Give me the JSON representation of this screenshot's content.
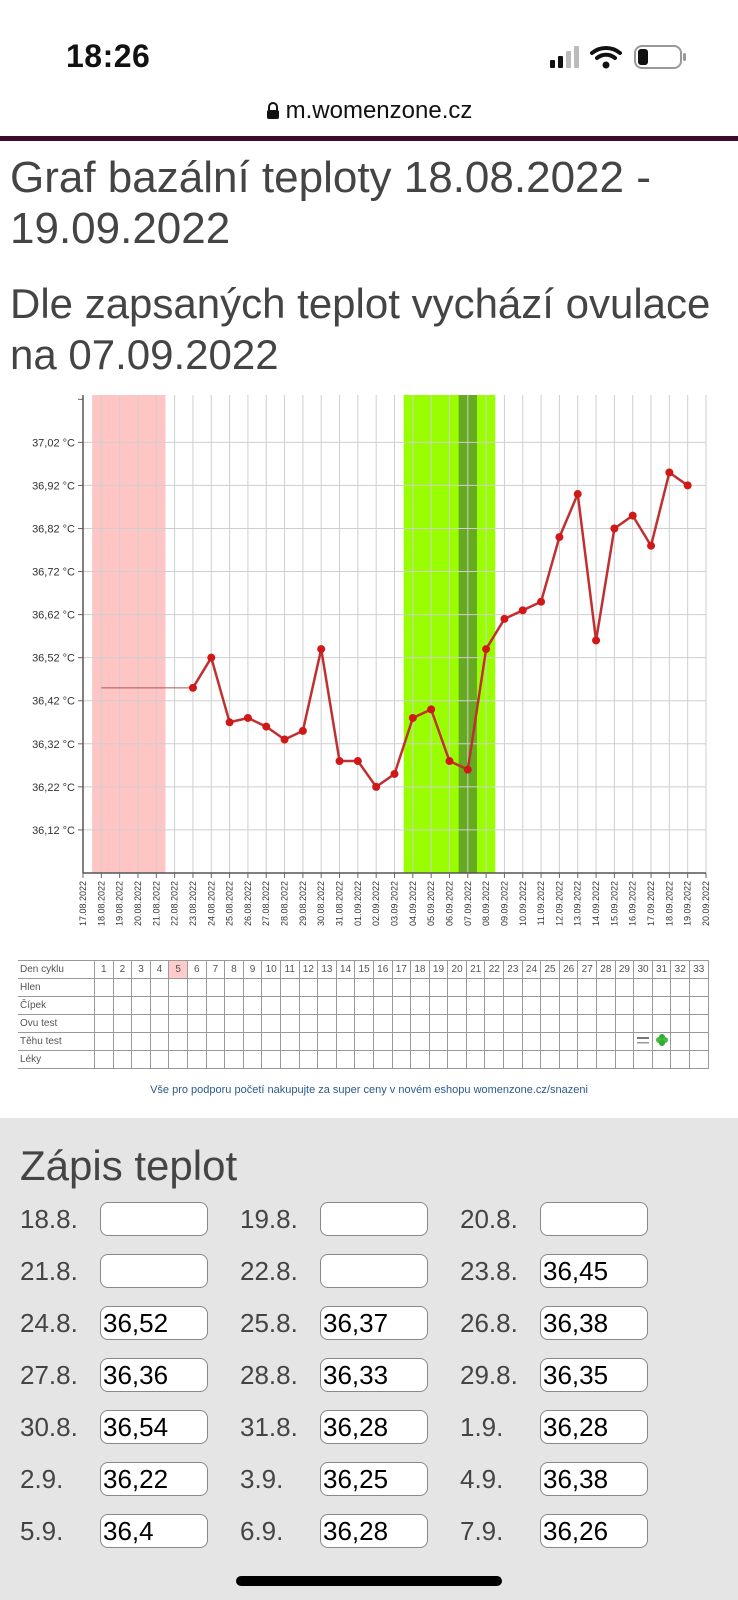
{
  "status_bar": {
    "time": "18:26"
  },
  "browser": {
    "url": "m.womenzone.cz"
  },
  "page": {
    "title": "Graf bazální teploty 18.08.2022 - 19.09.2022",
    "ovulation_text": "Dle zapsaných teplot vychází ovulace na 07.09.2022"
  },
  "chart_data": {
    "type": "line",
    "x": [
      "17.08.2022",
      "18.08.2022",
      "19.08.2022",
      "20.08.2022",
      "21.08.2022",
      "22.08.2022",
      "23.08.2022",
      "24.08.2022",
      "25.08.2022",
      "26.08.2022",
      "27.08.2022",
      "28.08.2022",
      "29.08.2022",
      "30.08.2022",
      "31.08.2022",
      "01.09.2022",
      "02.09.2022",
      "03.09.2022",
      "04.09.2022",
      "05.09.2022",
      "06.09.2022",
      "07.09.2022",
      "08.09.2022",
      "09.09.2022",
      "10.09.2022",
      "11.09.2022",
      "12.09.2022",
      "13.09.2022",
      "14.09.2022",
      "15.09.2022",
      "16.09.2022",
      "17.09.2022",
      "18.09.2022",
      "19.09.2022",
      "20.09.2022"
    ],
    "yticks": [
      "37,02 °C",
      "36,92 °C",
      "36,82 °C",
      "36,72 °C",
      "36,62 °C",
      "36,52 °C",
      "36,42 °C",
      "36,32 °C",
      "36,22 °C",
      "36,12 °C"
    ],
    "ylim": [
      36.02,
      37.13
    ],
    "series": [
      {
        "x": [
          "23.08.2022",
          "24.08.2022",
          "25.08.2022",
          "26.08.2022",
          "27.08.2022",
          "28.08.2022",
          "29.08.2022",
          "30.08.2022",
          "31.08.2022",
          "01.09.2022",
          "02.09.2022",
          "03.09.2022",
          "04.09.2022",
          "05.09.2022",
          "06.09.2022",
          "07.09.2022",
          "08.09.2022",
          "09.09.2022",
          "10.09.2022",
          "11.09.2022",
          "12.09.2022",
          "13.09.2022",
          "14.09.2022",
          "15.09.2022",
          "16.09.2022",
          "17.09.2022",
          "18.09.2022",
          "19.09.2022"
        ],
        "values": [
          36.45,
          36.52,
          36.37,
          36.38,
          36.36,
          36.33,
          36.35,
          36.54,
          36.28,
          36.28,
          36.22,
          36.25,
          36.38,
          36.4,
          36.28,
          36.26,
          36.54,
          36.61,
          36.63,
          36.65,
          36.8,
          36.9,
          36.56,
          36.82,
          36.85,
          36.78,
          36.95,
          36.92
        ],
        "color": "#c03030"
      }
    ],
    "baseline": {
      "from": "18.08.2022",
      "to": "23.08.2022",
      "value": 36.45
    },
    "bands": [
      {
        "from": "18.08.2022",
        "to": "22.08.2022",
        "color": "#ffc4c4"
      },
      {
        "from": "04.09.2022",
        "to": "09.09.2022",
        "color": "#99ff00"
      },
      {
        "from": "07.09.2022",
        "to": "08.09.2022",
        "color": "#66aa22"
      }
    ],
    "grid": true
  },
  "cycle_table": {
    "rows": [
      "Den cyklu",
      "Hlen",
      "Čípek",
      "Ovu test",
      "Těhu test",
      "Léky"
    ],
    "days": [
      "1",
      "2",
      "3",
      "4",
      "5",
      "6",
      "7",
      "8",
      "9",
      "10",
      "11",
      "12",
      "13",
      "14",
      "15",
      "16",
      "17",
      "18",
      "19",
      "20",
      "21",
      "22",
      "23",
      "24",
      "25",
      "26",
      "27",
      "28",
      "29",
      "30",
      "31",
      "32",
      "33"
    ],
    "highlight_day": "5",
    "test_marks": [
      {
        "day": "30",
        "icon": "test-strip-icon"
      },
      {
        "day": "31",
        "icon": "clover-icon"
      }
    ]
  },
  "promo": "Vše pro podporu početí nakupujte za super ceny v novém eshopu womenzone.cz/snazeni",
  "entry": {
    "title": "Zápis teplot",
    "items": [
      {
        "date": "18.8.",
        "value": ""
      },
      {
        "date": "19.8.",
        "value": ""
      },
      {
        "date": "20.8.",
        "value": ""
      },
      {
        "date": "21.8.",
        "value": ""
      },
      {
        "date": "22.8.",
        "value": ""
      },
      {
        "date": "23.8.",
        "value": "36,45"
      },
      {
        "date": "24.8.",
        "value": "36,52"
      },
      {
        "date": "25.8.",
        "value": "36,37"
      },
      {
        "date": "26.8.",
        "value": "36,38"
      },
      {
        "date": "27.8.",
        "value": "36,36"
      },
      {
        "date": "28.8.",
        "value": "36,33"
      },
      {
        "date": "29.8.",
        "value": "36,35"
      },
      {
        "date": "30.8.",
        "value": "36,54"
      },
      {
        "date": "31.8.",
        "value": "36,28"
      },
      {
        "date": "1.9.",
        "value": "36,28"
      },
      {
        "date": "2.9.",
        "value": "36,22"
      },
      {
        "date": "3.9.",
        "value": "36,25"
      },
      {
        "date": "4.9.",
        "value": "36,38"
      },
      {
        "date": "5.9.",
        "value": "36,4"
      },
      {
        "date": "6.9.",
        "value": "36,28"
      },
      {
        "date": "7.9.",
        "value": "36,26"
      }
    ]
  }
}
